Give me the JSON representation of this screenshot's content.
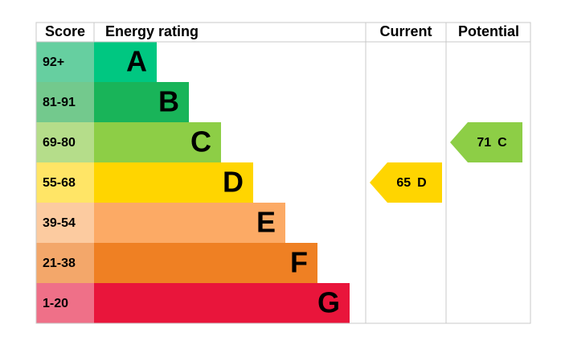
{
  "header": {
    "score": "Score",
    "rating": "Energy rating",
    "current": "Current",
    "potential": "Potential"
  },
  "bands": [
    {
      "score": "92+",
      "letter": "A",
      "color": "#00c781",
      "light": "#66cfa0"
    },
    {
      "score": "81-91",
      "letter": "B",
      "color": "#19b459",
      "light": "#73c98d"
    },
    {
      "score": "69-80",
      "letter": "C",
      "color": "#8dce46",
      "light": "#b5dd8a"
    },
    {
      "score": "55-68",
      "letter": "D",
      "color": "#ffd500",
      "light": "#ffe566"
    },
    {
      "score": "39-54",
      "letter": "E",
      "color": "#fcaa65",
      "light": "#fccba0"
    },
    {
      "score": "21-38",
      "letter": "F",
      "color": "#ef8023",
      "light": "#f3a76a"
    },
    {
      "score": "1-20",
      "letter": "G",
      "color": "#e9153b",
      "light": "#ef7088"
    }
  ],
  "current": {
    "score": 65,
    "band": "D"
  },
  "potential": {
    "score": 71,
    "band": "C"
  }
}
